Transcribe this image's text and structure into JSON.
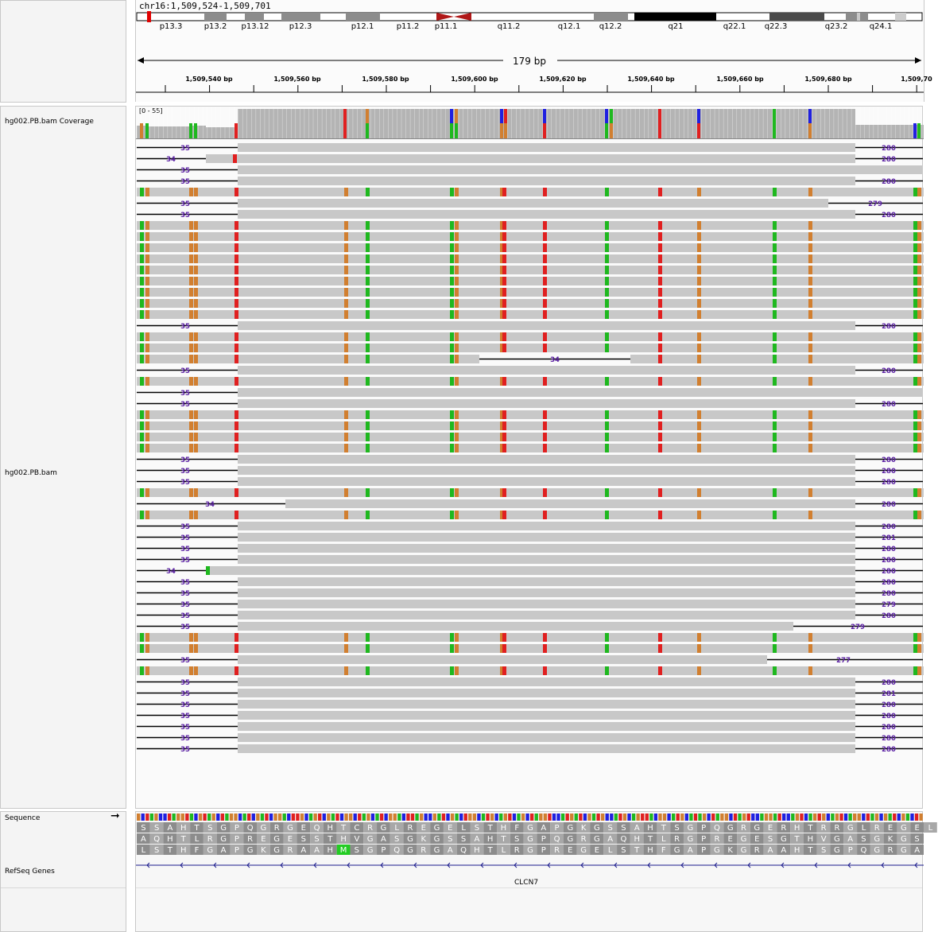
{
  "header": {
    "locus": "chr16:1,509,524-1,509,701",
    "span_label": "179 bp",
    "bands": [
      {
        "name": "p13.3",
        "stain": "white"
      },
      {
        "name": "p13.2",
        "stain": "gray"
      },
      {
        "name": "p13.12",
        "stain": "gray"
      },
      {
        "name": "p12.3",
        "stain": "gray"
      },
      {
        "name": "p12.1",
        "stain": "gray"
      },
      {
        "name": "p11.2",
        "stain": "white"
      },
      {
        "name": "p11.1",
        "stain": "centromere"
      },
      {
        "name": "q11.2",
        "stain": "white"
      },
      {
        "name": "q12.1",
        "stain": "white"
      },
      {
        "name": "q12.2",
        "stain": "gray"
      },
      {
        "name": "q21",
        "stain": "black"
      },
      {
        "name": "q22.1",
        "stain": "white"
      },
      {
        "name": "q22.3",
        "stain": "dark"
      },
      {
        "name": "q23.2",
        "stain": "gray"
      },
      {
        "name": "q24.1",
        "stain": "white"
      }
    ],
    "ruler_ticks": [
      "1,509,540 bp",
      "1,509,560 bp",
      "1,509,580 bp",
      "1,509,600 bp",
      "1,509,620 bp",
      "1,509,640 bp",
      "1,509,660 bp",
      "1,509,680 bp",
      "1,509,70"
    ]
  },
  "tracks": {
    "coverage_label": "hg002.PB.bam Coverage",
    "coverage_range": "[0 - 55]",
    "alignment_label": "hg002.PB.bam",
    "sequence_label": "Sequence",
    "refseq_label": "RefSeq Genes",
    "gene_name": "CLCN7"
  },
  "colors": {
    "A": "#1fb81f",
    "C": "#2020e0",
    "G": "#d17f30",
    "T": "#e02020",
    "read": "#c8c8c8",
    "insertion": "#5a1fa3"
  },
  "reads": [
    {
      "left": "35",
      "right": "280"
    },
    {
      "left": "34",
      "right": "280"
    },
    {
      "left": "35",
      "right": ""
    },
    {
      "left": "35",
      "right": "280"
    },
    {
      "left": "",
      "right": ""
    },
    {
      "left": "35",
      "right": "279"
    },
    {
      "left": "35",
      "right": "280"
    },
    {
      "left": "",
      "right": ""
    },
    {
      "left": "",
      "right": ""
    },
    {
      "left": "",
      "right": ""
    },
    {
      "left": "",
      "right": ""
    },
    {
      "left": "",
      "right": ""
    },
    {
      "left": "",
      "right": ""
    },
    {
      "left": "",
      "right": ""
    },
    {
      "left": "",
      "right": ""
    },
    {
      "left": "",
      "right": ""
    },
    {
      "left": "35",
      "right": "280"
    },
    {
      "left": "",
      "right": ""
    },
    {
      "left": "",
      "right": ""
    },
    {
      "left": "",
      "right": "34"
    },
    {
      "left": "35",
      "right": "280"
    },
    {
      "left": "",
      "right": ""
    },
    {
      "left": "35",
      "right": ""
    },
    {
      "left": "35",
      "right": "280"
    },
    {
      "left": "",
      "right": ""
    },
    {
      "left": "",
      "right": ""
    },
    {
      "left": "",
      "right": ""
    },
    {
      "left": "",
      "right": ""
    },
    {
      "left": "35",
      "right": "280"
    },
    {
      "left": "35",
      "right": "280"
    },
    {
      "left": "35",
      "right": "280"
    },
    {
      "left": "",
      "right": ""
    },
    {
      "left": "34",
      "right": "280"
    },
    {
      "left": "",
      "right": ""
    },
    {
      "left": "35",
      "right": "280"
    },
    {
      "left": "35",
      "right": "281"
    },
    {
      "left": "35",
      "right": "280"
    },
    {
      "left": "35",
      "right": "280"
    },
    {
      "left": "34",
      "right": "280"
    },
    {
      "left": "35",
      "right": "280"
    },
    {
      "left": "35",
      "right": "280"
    },
    {
      "left": "35",
      "right": "279"
    },
    {
      "left": "35",
      "right": "280"
    },
    {
      "left": "35",
      "right": "279"
    },
    {
      "left": "",
      "right": ""
    },
    {
      "left": "",
      "right": ""
    },
    {
      "left": "35",
      "right": "277"
    },
    {
      "left": "",
      "right": ""
    },
    {
      "left": "35",
      "right": "280"
    },
    {
      "left": "35",
      "right": "281"
    },
    {
      "left": "35",
      "right": "280"
    },
    {
      "left": "35",
      "right": "280"
    },
    {
      "left": "35",
      "right": "280"
    },
    {
      "left": "35",
      "right": "280"
    },
    {
      "left": "35",
      "right": "280"
    }
  ],
  "translation": {
    "frame1": "SSAHTSGPQGRGEQHTCRGLREGELSTHFGAPGKGSSAHTSGPQGRGERHTRRGLREGEL",
    "frame2": "AQHTLRGPREGESSTHVGASGKGSSAHTSGPQGRGAQHTLRGPREGESGTHVGASGKGS",
    "frame3": "LSTHFGAPGKGRAAHMSGPQGRGAQHTLRGPREGELSTHFGAPGKGRAAHTSGPQGRGA"
  }
}
